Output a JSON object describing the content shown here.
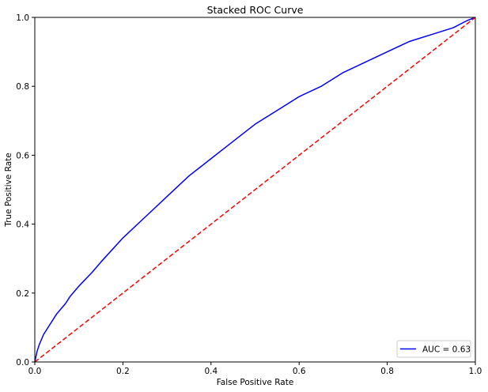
{
  "chart_data": {
    "type": "line",
    "title": "Stacked ROC Curve",
    "xlabel": "False Positive Rate",
    "ylabel": "True Positive Rate",
    "xlim": [
      0,
      1
    ],
    "ylim": [
      0,
      1
    ],
    "xticks": [
      "0.0",
      "0.2",
      "0.4",
      "0.6",
      "0.8",
      "1.0"
    ],
    "yticks": [
      "0.0",
      "0.2",
      "0.4",
      "0.6",
      "0.8",
      "1.0"
    ],
    "grid": false,
    "legend_position": "lower-right",
    "series": [
      {
        "name": "AUC = 0.63",
        "color": "#0000ff",
        "style": "solid",
        "x": [
          0.0,
          0.005,
          0.01,
          0.02,
          0.03,
          0.05,
          0.07,
          0.08,
          0.1,
          0.13,
          0.15,
          0.2,
          0.25,
          0.3,
          0.35,
          0.4,
          0.45,
          0.5,
          0.55,
          0.6,
          0.65,
          0.7,
          0.75,
          0.8,
          0.85,
          0.9,
          0.95,
          0.98,
          1.0
        ],
        "y": [
          0.0,
          0.03,
          0.05,
          0.08,
          0.1,
          0.14,
          0.17,
          0.19,
          0.22,
          0.26,
          0.29,
          0.36,
          0.42,
          0.48,
          0.54,
          0.59,
          0.64,
          0.69,
          0.73,
          0.77,
          0.8,
          0.84,
          0.87,
          0.9,
          0.93,
          0.95,
          0.97,
          0.99,
          1.0
        ]
      },
      {
        "name": "",
        "color": "#ff0000",
        "style": "dashed",
        "x": [
          0,
          1
        ],
        "y": [
          0,
          1
        ]
      }
    ]
  }
}
